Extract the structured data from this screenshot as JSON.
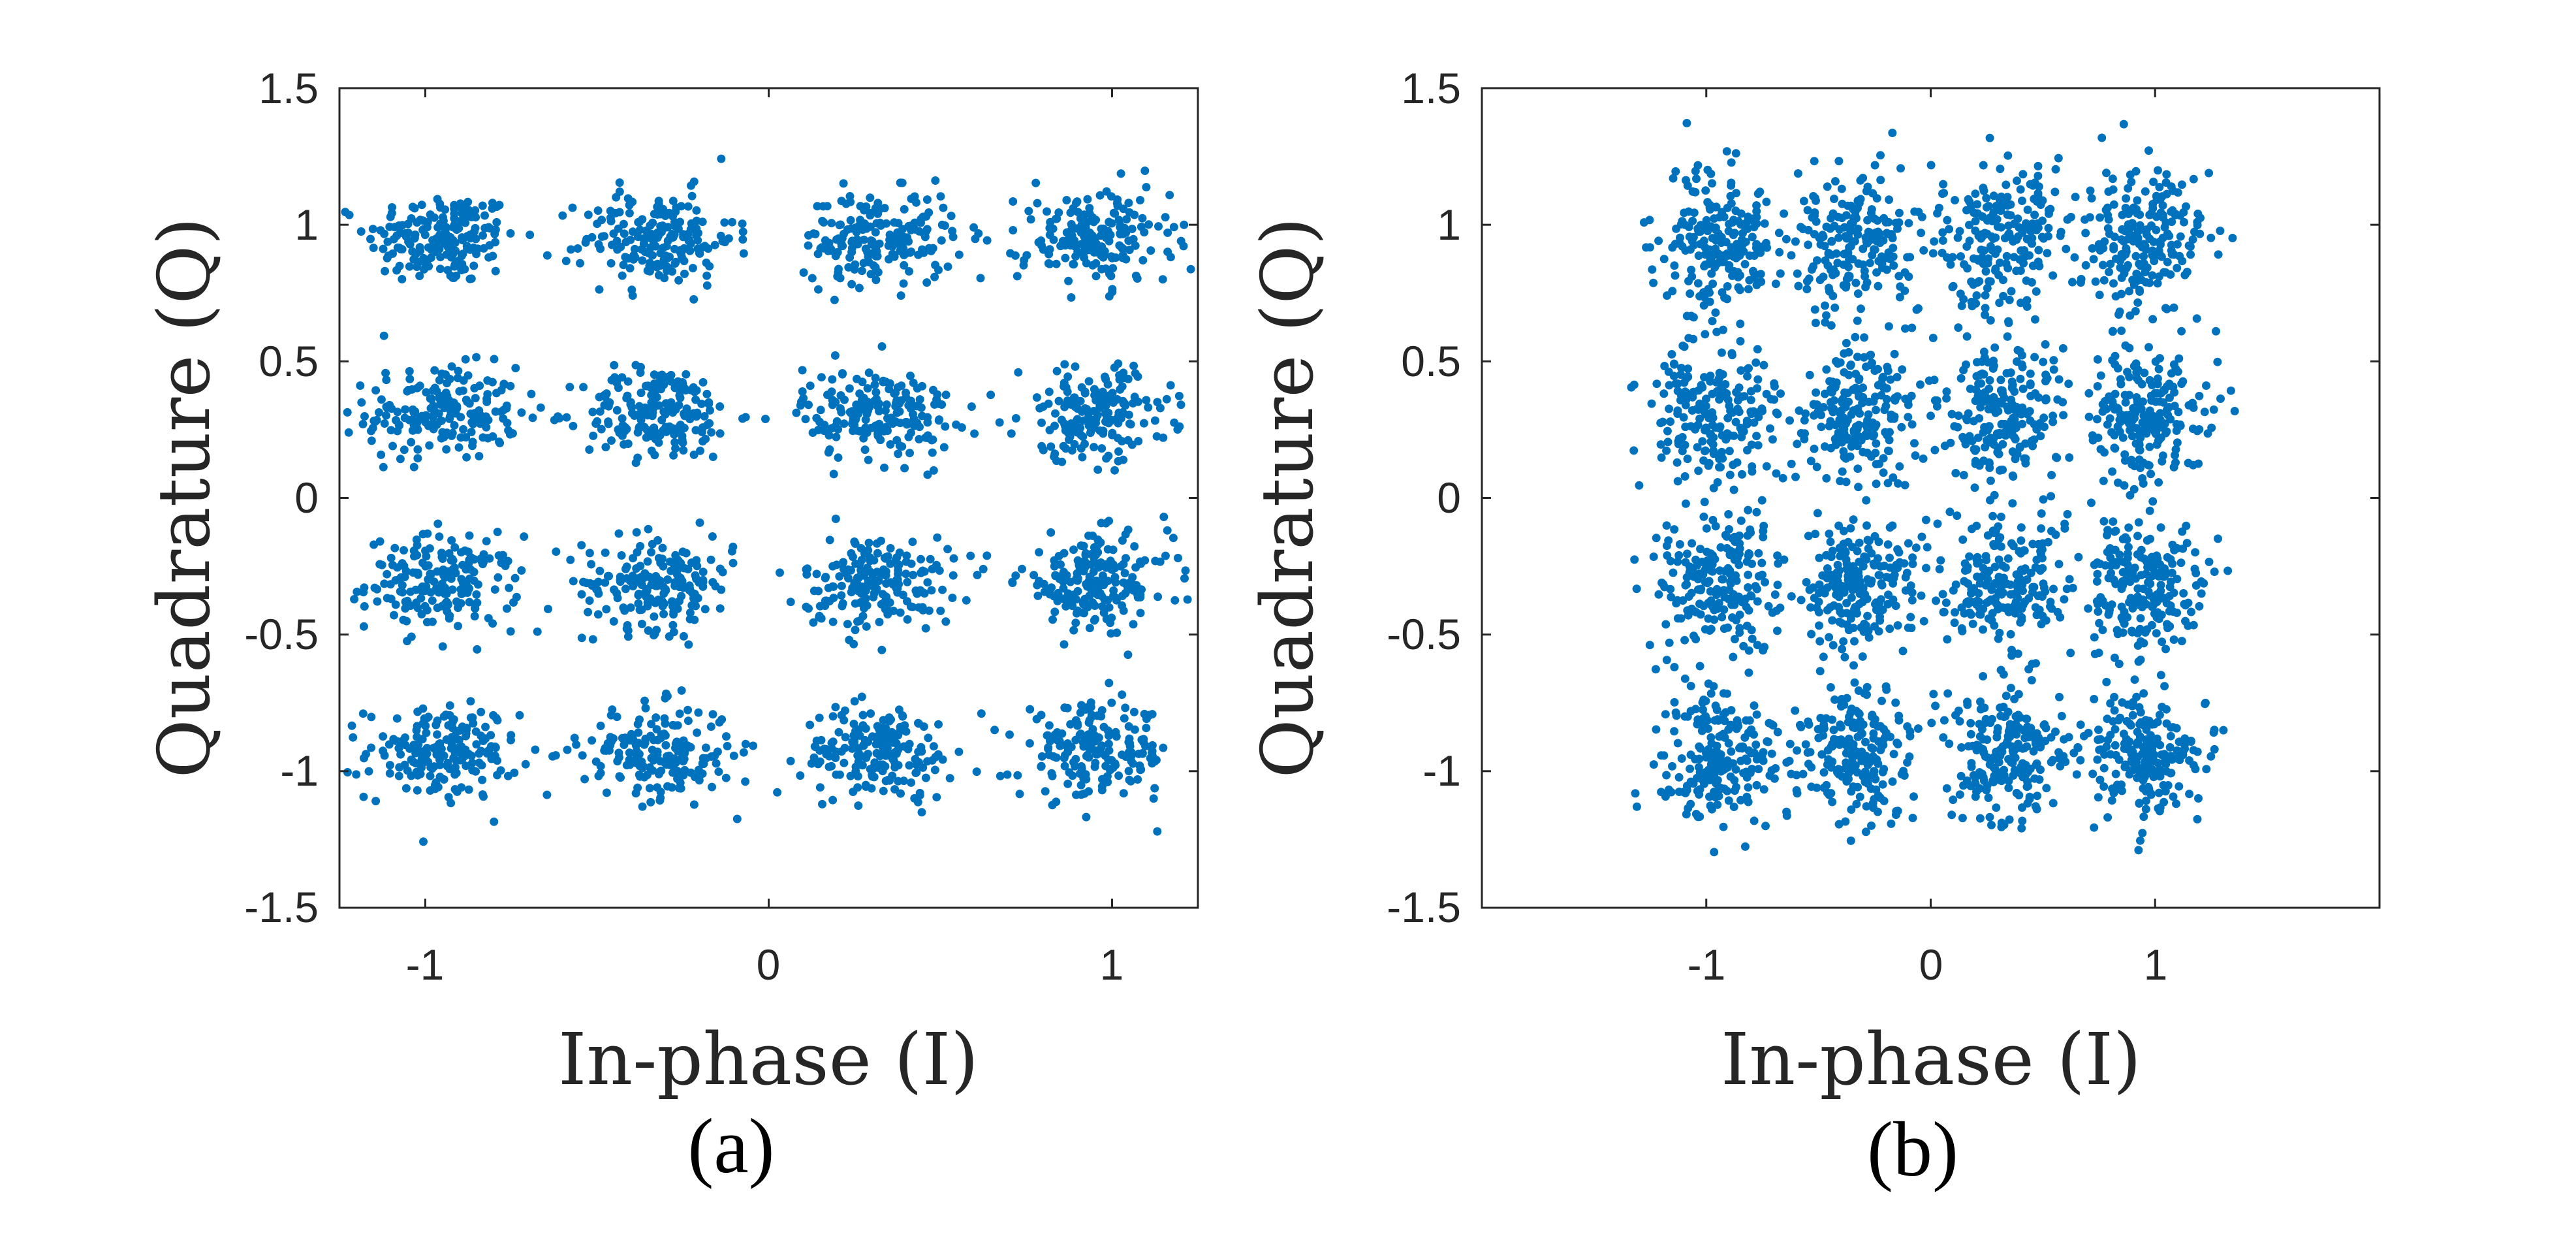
{
  "chart_data": [
    {
      "type": "scatter",
      "caption": "(a)",
      "xlabel": "In-phase (I)",
      "ylabel": "Quadrature (Q)",
      "xlim": [
        -1.25,
        1.25
      ],
      "ylim": [
        -1.5,
        1.5
      ],
      "xticks": [
        -1,
        0,
        1
      ],
      "xtick_labels": [
        "-1",
        "0",
        "1"
      ],
      "yticks": [
        -1.5,
        -1,
        -0.5,
        0,
        0.5,
        1,
        1.5
      ],
      "ytick_labels": [
        "-1.5",
        "-1",
        "-0.5",
        "0",
        "0.5",
        "1",
        "1.5"
      ],
      "grid": false,
      "marker_color": "#0072BD",
      "clusters": {
        "i_centers": [
          -0.95,
          -0.32,
          0.32,
          0.95
        ],
        "q_centers": [
          0.95,
          0.31,
          -0.31,
          -0.93
        ],
        "points_per_cluster": 190,
        "spread_i": 0.11,
        "spread_q": 0.085
      }
    },
    {
      "type": "scatter",
      "caption": "(b)",
      "xlabel": "In-phase (I)",
      "ylabel": "Quadrature (Q)",
      "xlim": [
        -2,
        2
      ],
      "ylim": [
        -1.5,
        1.5
      ],
      "xticks": [
        -1,
        0,
        1
      ],
      "xtick_labels": [
        "-1",
        "0",
        "1"
      ],
      "yticks": [
        -1.5,
        -1,
        -0.5,
        0,
        0.5,
        1,
        1.5
      ],
      "ytick_labels": [
        "-1.5",
        "-1",
        "-0.5",
        "0",
        "0.5",
        "1",
        "1.5"
      ],
      "grid": false,
      "marker_color": "#0072BD",
      "clusters": {
        "i_centers": [
          -0.95,
          -0.32,
          0.32,
          0.95
        ],
        "q_centers": [
          0.95,
          0.31,
          -0.31,
          -0.93
        ],
        "points_per_cluster": 210,
        "spread_i": 0.14,
        "spread_q": 0.13
      }
    }
  ]
}
